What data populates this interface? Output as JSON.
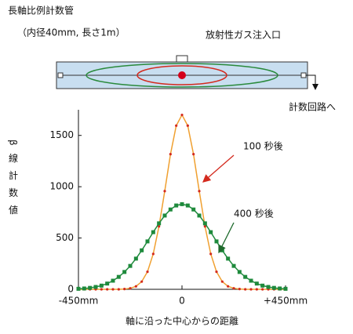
{
  "diagram": {
    "title": "長軸比例計数管",
    "note": "（内径40mm, 長さ1m）",
    "inlet_label": "放射性ガス注入口",
    "output_label": "計数回路へ"
  },
  "chart_data": {
    "type": "line",
    "xlabel": "軸に沿った中心からの距離",
    "ylabel": "β線計数値",
    "x": [
      -450,
      -425,
      -400,
      -375,
      -350,
      -325,
      -300,
      -275,
      -250,
      -225,
      -200,
      -175,
      -150,
      -125,
      -100,
      -75,
      -50,
      -25,
      0,
      25,
      50,
      75,
      100,
      125,
      150,
      175,
      200,
      225,
      250,
      275,
      300,
      325,
      350,
      375,
      400,
      425,
      450
    ],
    "series": [
      {
        "name": "100 秒後",
        "color": "#d42a1e",
        "line_color": "#f0a030",
        "values": [
          0,
          0,
          0,
          0,
          0,
          0,
          0,
          0,
          3,
          10,
          29,
          75,
          171,
          345,
          613,
          957,
          1317,
          1595,
          1700,
          1595,
          1317,
          957,
          613,
          345,
          171,
          75,
          29,
          10,
          3,
          0,
          0,
          0,
          0,
          0,
          0,
          0,
          0
        ]
      },
      {
        "name": "400 秒後",
        "color": "#1e8a3c",
        "line_color": "#1e8a3c",
        "values": [
          5,
          8,
          14,
          23,
          36,
          56,
          84,
          121,
          169,
          228,
          299,
          380,
          467,
          557,
          643,
          719,
          778,
          817,
          830,
          817,
          778,
          719,
          643,
          557,
          467,
          380,
          299,
          228,
          169,
          121,
          84,
          56,
          36,
          23,
          14,
          8,
          5
        ]
      }
    ],
    "xlim": [
      -450,
      450
    ],
    "ylim": [
      0,
      1750
    ],
    "xticks": [
      {
        "value": -450,
        "label": "-450mm"
      },
      0,
      {
        "value": 450,
        "label": "+450mm"
      }
    ],
    "yticks": [
      0,
      500,
      1000,
      1500
    ]
  }
}
